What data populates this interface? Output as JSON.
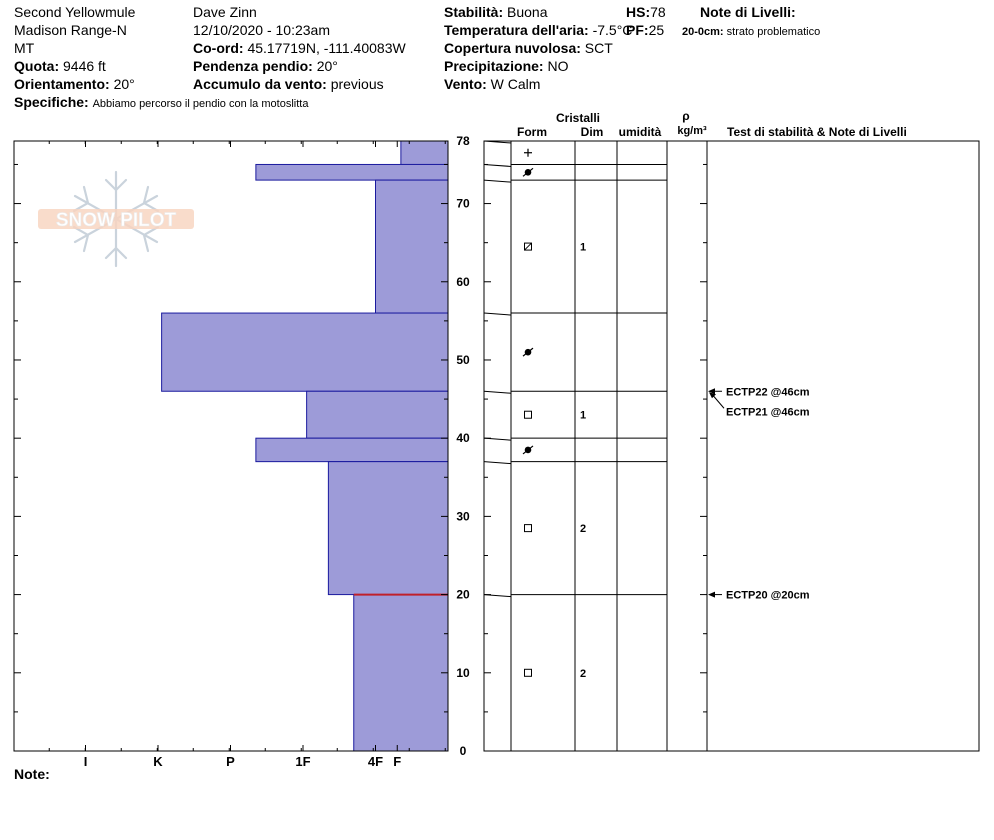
{
  "header": {
    "location": "Second Yellowmule",
    "range": "Madison Range-N",
    "state": "MT",
    "elevation_label": "Quota:",
    "elevation": "9446 ft",
    "aspect_label": "Orientamento:",
    "aspect": "20°",
    "specifics_label": "Specifiche:",
    "specifics": "Abbiamo percorso il pendio con la motoslitta",
    "observer": "Dave Zinn",
    "datetime": "12/10/2020 - 10:23am",
    "coord_label": "Co-ord:",
    "coord": "45.17719N, -111.40083W",
    "slope_label": "Pendenza pendio:",
    "slope": "20°",
    "wind_load_label": "Accumulo da vento:",
    "wind_load": "previous",
    "stability_label": "Stabilità:",
    "stability": "Buona",
    "air_temp_label": "Temperatura dell'aria:",
    "air_temp": "-7.5°C",
    "cloud_label": "Copertura nuvolosa:",
    "cloud": "SCT",
    "precip_label": "Precipitazione:",
    "precip": "NO",
    "wind_label": "Vento:",
    "wind": "W Calm",
    "hs_label": "HS:",
    "hs": "78",
    "pf_label": "PF:",
    "pf": "25",
    "layer_notes_title": "Note di Livelli:",
    "layer_note_depth": "20-0cm:",
    "layer_note_text": "strato problematico"
  },
  "columns": {
    "crystals": "Cristalli",
    "form": "Form",
    "size": "Dim",
    "moisture": "umidità",
    "rho": "ρ",
    "density_unit": "kg/m³",
    "tests": "Test di stabilità & Note di Livelli"
  },
  "logo_text": "SNOW PILOT",
  "notes_label": "Note:",
  "chart_data": {
    "type": "bar",
    "orientation": "horizontal",
    "x_axis": {
      "ticks": [
        "I",
        "K",
        "P",
        "1F",
        "4F",
        "F"
      ],
      "reversed": true
    },
    "y_axis": {
      "range": [
        0,
        78
      ],
      "ticks": [
        0,
        10,
        20,
        30,
        40,
        50,
        60,
        70,
        78
      ]
    },
    "layers": [
      {
        "top": 78,
        "bottom": 75,
        "hardness": 0.65,
        "form": "plus",
        "size": ""
      },
      {
        "top": 75,
        "bottom": 73,
        "hardness": 2.65,
        "form": "sphere",
        "size": ""
      },
      {
        "top": 73,
        "bottom": 56,
        "hardness": 1.0,
        "form": "hatched-square",
        "size": "1"
      },
      {
        "top": 56,
        "bottom": 46,
        "hardness": 3.95,
        "form": "sphere",
        "size": ""
      },
      {
        "top": 46,
        "bottom": 40,
        "hardness": 1.95,
        "form": "square",
        "size": "1"
      },
      {
        "top": 40,
        "bottom": 37,
        "hardness": 2.65,
        "form": "sphere",
        "size": ""
      },
      {
        "top": 37,
        "bottom": 20,
        "hardness": 1.65,
        "form": "square",
        "size": "2"
      },
      {
        "top": 20,
        "bottom": 0,
        "hardness": 1.3,
        "form": "square",
        "size": "2"
      }
    ],
    "problem_layer_depth": 20,
    "stability_tests": [
      {
        "label": "ECTP22 @46cm",
        "depth": 46
      },
      {
        "label": "ECTP21 @46cm",
        "depth": 46
      },
      {
        "label": "ECTP20 @20cm",
        "depth": 20
      }
    ]
  }
}
